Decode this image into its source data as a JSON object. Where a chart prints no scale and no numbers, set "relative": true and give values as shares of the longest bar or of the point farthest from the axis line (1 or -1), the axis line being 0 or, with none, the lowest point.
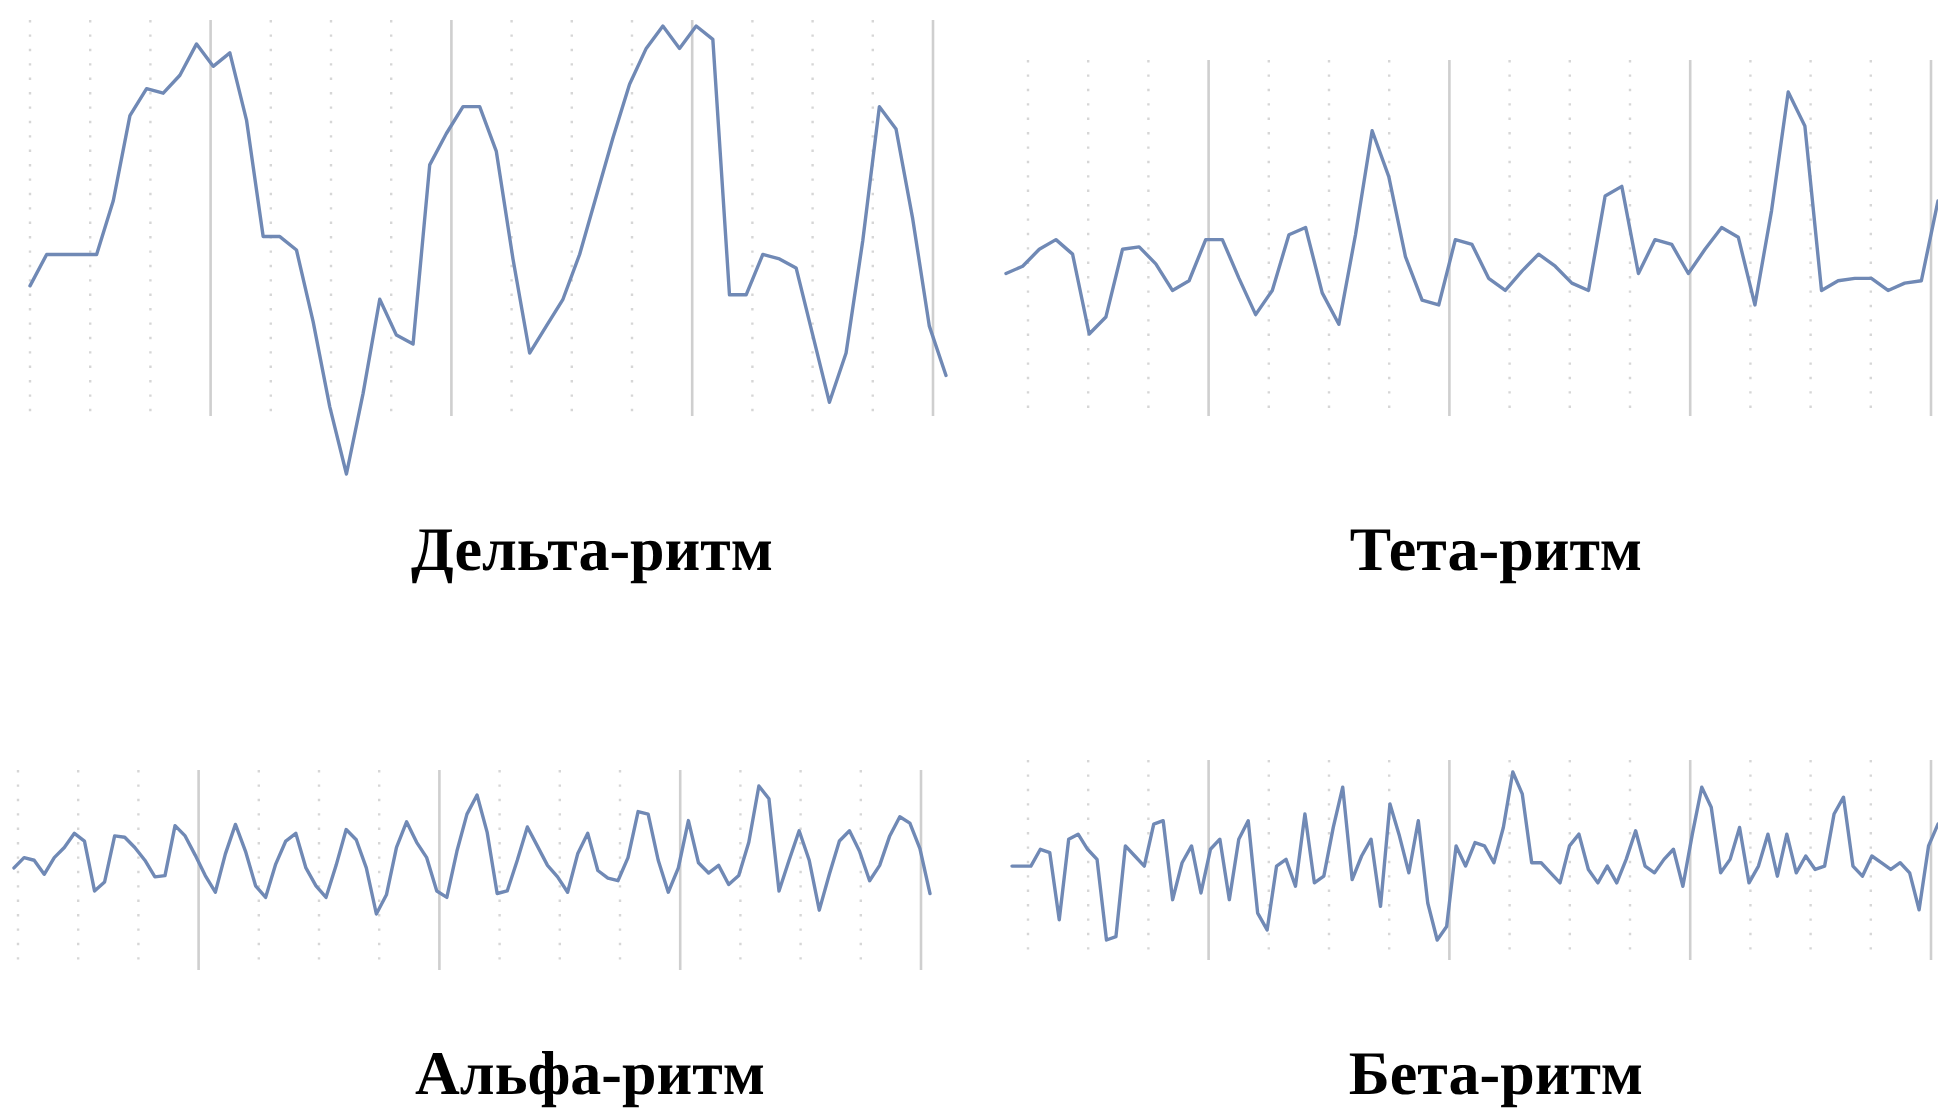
{
  "chart_data": [
    {
      "type": "line",
      "title": "Дельта-ритм",
      "relative": true,
      "grid": "x",
      "categories": [
        null,
        null,
        null,
        null,
        null,
        null,
        null,
        null,
        null,
        null,
        null,
        null,
        null,
        null,
        null,
        null,
        null,
        null,
        null,
        null,
        null,
        null,
        null,
        null,
        null,
        null,
        null,
        null,
        null,
        null,
        null,
        null,
        null,
        null,
        null,
        null,
        null,
        null,
        null,
        null,
        null,
        null,
        null,
        null,
        null,
        null,
        null,
        null,
        null,
        null,
        null,
        null,
        null,
        null,
        null,
        null
      ],
      "series": [
        {
          "color": "#7089b5",
          "values": [
            0.42,
            0.49,
            0.49,
            0.49,
            0.49,
            0.61,
            0.8,
            0.86,
            0.85,
            0.89,
            0.96,
            0.91,
            0.94,
            0.79,
            0.53,
            0.53,
            0.5,
            0.34,
            0.15,
            0,
            0.18,
            0.39,
            0.31,
            0.29,
            0.69,
            0.76,
            0.82,
            0.82,
            0.72,
            0.48,
            0.27,
            0.33,
            0.39,
            0.49,
            0.62,
            0.75,
            0.87,
            0.95,
            1,
            0.95,
            1,
            0.97,
            0.4,
            0.4,
            0.49,
            0.48,
            0.46,
            0.31,
            0.16,
            0.27,
            0.52,
            0.82,
            0.77,
            0.57,
            0.33,
            0.22
          ]
        }
      ]
    },
    {
      "type": "line",
      "title": "Тета-ритм",
      "relative": true,
      "grid": "x",
      "categories": [
        null,
        null,
        null,
        null,
        null,
        null,
        null,
        null,
        null,
        null,
        null,
        null,
        null,
        null,
        null,
        null,
        null,
        null,
        null,
        null,
        null,
        null,
        null,
        null,
        null,
        null,
        null,
        null,
        null,
        null,
        null,
        null,
        null,
        null,
        null,
        null,
        null,
        null,
        null,
        null,
        null,
        null,
        null,
        null,
        null,
        null,
        null,
        null,
        null,
        null,
        null,
        null,
        null,
        null,
        null,
        null,
        null
      ],
      "series": [
        {
          "color": "#7089b5",
          "values": [
            0.25,
            0.28,
            0.35,
            0.39,
            0.33,
            0,
            0.07,
            0.35,
            0.36,
            0.29,
            0.18,
            0.22,
            0.39,
            0.39,
            0.23,
            0.08,
            0.18,
            0.41,
            0.44,
            0.17,
            0.04,
            0.41,
            0.84,
            0.65,
            0.32,
            0.14,
            0.12,
            0.39,
            0.37,
            0.23,
            0.18,
            0.26,
            0.33,
            0.28,
            0.21,
            0.18,
            0.57,
            0.61,
            0.25,
            0.39,
            0.37,
            0.25,
            0.35,
            0.44,
            0.4,
            0.12,
            0.51,
            1,
            0.86,
            0.18,
            0.22,
            0.23,
            0.23,
            0.18,
            0.21,
            0.22,
            0.55
          ]
        }
      ]
    },
    {
      "type": "line",
      "title": "Альфа-ритм",
      "relative": true,
      "grid": "x",
      "categories": [
        null,
        null,
        null,
        null,
        null,
        null,
        null,
        null,
        null,
        null,
        null,
        null,
        null,
        null,
        null,
        null,
        null,
        null,
        null,
        null,
        null,
        null,
        null,
        null,
        null,
        null,
        null,
        null,
        null,
        null,
        null,
        null,
        null,
        null,
        null,
        null,
        null,
        null,
        null,
        null,
        null,
        null,
        null,
        null,
        null,
        null,
        null,
        null,
        null,
        null,
        null,
        null,
        null,
        null,
        null,
        null,
        null,
        null,
        null,
        null,
        null,
        null,
        null,
        null,
        null,
        null,
        null,
        null,
        null,
        null,
        null,
        null,
        null,
        null,
        null,
        null,
        null,
        null,
        null,
        null,
        null,
        null,
        null,
        null,
        null,
        null,
        null,
        null,
        null,
        null,
        null,
        null
      ],
      "series": [
        {
          "color": "#7089b5",
          "values": [
            0.36,
            0.44,
            0.42,
            0.31,
            0.44,
            0.52,
            0.63,
            0.57,
            0.18,
            0.25,
            0.61,
            0.6,
            0.52,
            0.42,
            0.29,
            0.3,
            0.69,
            0.61,
            0.46,
            0.3,
            0.17,
            0.47,
            0.7,
            0.49,
            0.22,
            0.13,
            0.39,
            0.57,
            0.63,
            0.36,
            0.22,
            0.13,
            0.38,
            0.66,
            0.58,
            0.36,
            0,
            0.15,
            0.52,
            0.72,
            0.56,
            0.44,
            0.18,
            0.13,
            0.49,
            0.78,
            0.93,
            0.64,
            0.16,
            0.18,
            0.42,
            0.68,
            0.53,
            0.38,
            0.29,
            0.17,
            0.47,
            0.63,
            0.34,
            0.28,
            0.26,
            0.44,
            0.8,
            0.78,
            0.42,
            0.17,
            0.36,
            0.73,
            0.4,
            0.32,
            0.38,
            0.23,
            0.3,
            0.56,
            1,
            0.9,
            0.18,
            0.42,
            0.65,
            0.42,
            0.03,
            0.31,
            0.57,
            0.65,
            0.49,
            0.26,
            0.38,
            0.61,
            0.76,
            0.71,
            0.51,
            0.16
          ]
        }
      ]
    },
    {
      "type": "line",
      "title": "Бета-ритм",
      "relative": true,
      "grid": "x",
      "categories": [
        null,
        null,
        null,
        null,
        null,
        null,
        null,
        null,
        null,
        null,
        null,
        null,
        null,
        null,
        null,
        null,
        null,
        null,
        null,
        null,
        null,
        null,
        null,
        null,
        null,
        null,
        null,
        null,
        null,
        null,
        null,
        null,
        null,
        null,
        null,
        null,
        null,
        null,
        null,
        null,
        null,
        null,
        null,
        null,
        null,
        null,
        null,
        null,
        null,
        null,
        null,
        null,
        null,
        null,
        null,
        null,
        null,
        null,
        null,
        null,
        null,
        null,
        null,
        null,
        null,
        null,
        null,
        null,
        null,
        null,
        null,
        null,
        null,
        null,
        null,
        null,
        null,
        null,
        null,
        null,
        null,
        null,
        null,
        null,
        null,
        null,
        null,
        null,
        null,
        null,
        null,
        null,
        null,
        null,
        null,
        null,
        null,
        null,
        null
      ],
      "series": [
        {
          "color": "#7089b5",
          "values": [
            0.44,
            0.44,
            0.44,
            0.54,
            0.52,
            0.12,
            0.6,
            0.63,
            0.54,
            0.48,
            0,
            0.02,
            0.56,
            0.5,
            0.44,
            0.69,
            0.71,
            0.24,
            0.46,
            0.56,
            0.28,
            0.54,
            0.6,
            0.24,
            0.6,
            0.71,
            0.16,
            0.06,
            0.44,
            0.48,
            0.32,
            0.75,
            0.34,
            0.38,
            0.67,
            0.91,
            0.36,
            0.5,
            0.6,
            0.2,
            0.81,
            0.62,
            0.4,
            0.71,
            0.22,
            0,
            0.08,
            0.56,
            0.44,
            0.58,
            0.56,
            0.46,
            0.67,
            1,
            0.87,
            0.46,
            0.46,
            0.4,
            0.34,
            0.56,
            0.63,
            0.42,
            0.34,
            0.44,
            0.34,
            0.48,
            0.65,
            0.44,
            0.4,
            0.48,
            0.54,
            0.32,
            0.63,
            0.91,
            0.79,
            0.4,
            0.48,
            0.67,
            0.34,
            0.44,
            0.63,
            0.38,
            0.63,
            0.4,
            0.5,
            0.42,
            0.44,
            0.75,
            0.85,
            0.44,
            0.38,
            0.5,
            0.46,
            0.42,
            0.46,
            0.4,
            0.18,
            0.56,
            0.69
          ]
        }
      ]
    }
  ]
}
